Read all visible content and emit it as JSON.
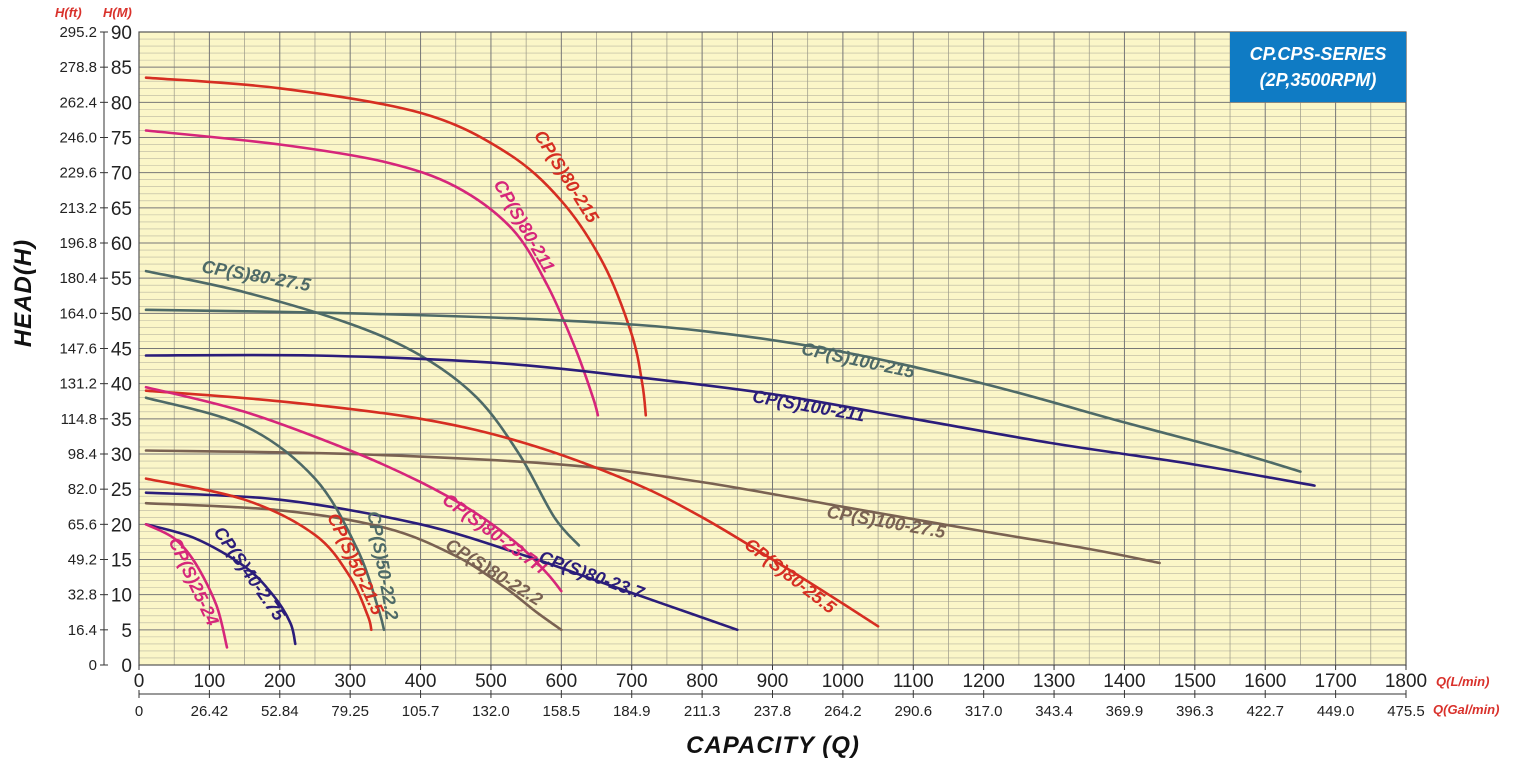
{
  "chart_data": {
    "type": "line",
    "title": "CP.CPS-SERIES",
    "subtitle": "(2P,3500RPM)",
    "xlabel": "CAPACITY (Q)",
    "ylabel": "HEAD(H)",
    "x_unit_primary": "Q(L/min)",
    "x_unit_secondary": "Q(Gal/min)",
    "y_unit_primary": "H(M)",
    "y_unit_secondary": "H(ft)",
    "xlim": [
      0,
      1800
    ],
    "ylim": [
      0,
      90
    ],
    "x_ticks": [
      "0",
      "100",
      "200",
      "300",
      "400",
      "500",
      "600",
      "700",
      "800",
      "900",
      "1000",
      "1100",
      "1200",
      "1300",
      "1400",
      "1500",
      "1600",
      "1700",
      "1800"
    ],
    "x_ticks_secondary": [
      "0",
      "26.42",
      "52.84",
      "79.25",
      "105.7",
      "132.0",
      "158.5",
      "184.9",
      "211.3",
      "237.8",
      "264.2",
      "290.6",
      "317.0",
      "343.4",
      "369.9",
      "396.3",
      "422.7",
      "449.0",
      "475.5"
    ],
    "y_ticks": [
      "0",
      "5",
      "10",
      "15",
      "20",
      "25",
      "30",
      "35",
      "40",
      "45",
      "50",
      "55",
      "60",
      "65",
      "70",
      "75",
      "80",
      "85",
      "90"
    ],
    "y_ticks_secondary": [
      "0",
      "16.4",
      "32.8",
      "49.2",
      "65.6",
      "82.0",
      "98.4",
      "114.8",
      "131.2",
      "147.6",
      "164.0",
      "180.4",
      "196.8",
      "213.2",
      "229.6",
      "246.0",
      "262.4",
      "278.8",
      "295.2"
    ],
    "grid": true,
    "background": "#fbf6c8",
    "badge_color": "#0f7bc4",
    "series": [
      {
        "name": "CP(S)80-215",
        "color": "#d62e22",
        "x": [
          10,
          200,
          400,
          520,
          600,
          660,
          700,
          715,
          720
        ],
        "y": [
          83.5,
          82,
          78.5,
          73,
          66,
          57,
          47,
          40,
          35.5
        ]
      },
      {
        "name": "CP(S)80-211",
        "color": "#d6267a",
        "x": [
          10,
          200,
          350,
          450,
          530,
          580,
          620,
          645,
          652
        ],
        "y": [
          76,
          74,
          71.5,
          68,
          62,
          54,
          45,
          38,
          35.5
        ]
      },
      {
        "name": "CP(S)80-27.5",
        "color": "#4e6a67",
        "x": [
          10,
          150,
          300,
          400,
          480,
          540,
          590,
          625
        ],
        "y": [
          56,
          53,
          48.5,
          44,
          38,
          30,
          21,
          17
        ]
      },
      {
        "name": "CP(S)100-215",
        "color": "#4e6a67",
        "x": [
          10,
          300,
          600,
          800,
          1000,
          1200,
          1400,
          1550,
          1650
        ],
        "y": [
          50.5,
          50,
          49,
          47.5,
          44.5,
          40,
          34.5,
          30.5,
          27.5
        ]
      },
      {
        "name": "CP(S)100-211",
        "color": "#2b1d7a",
        "x": [
          10,
          250,
          500,
          700,
          900,
          1100,
          1300,
          1500,
          1670
        ],
        "y": [
          44,
          44,
          43,
          41,
          38.5,
          35,
          31.5,
          28.5,
          25.5
        ]
      },
      {
        "name": "CP(S)100-27.5",
        "color": "#7a6252",
        "x": [
          10,
          300,
          600,
          800,
          1000,
          1200,
          1350,
          1450
        ],
        "y": [
          30.5,
          30,
          28.5,
          26,
          22.5,
          19,
          16.5,
          14.5
        ]
      },
      {
        "name": "CP(S)80-25.5",
        "color": "#d62e22",
        "x": [
          10,
          200,
          400,
          550,
          700,
          800,
          900,
          980,
          1050
        ],
        "y": [
          39,
          37.5,
          35,
          31.5,
          26,
          21,
          15,
          10,
          5.5
        ]
      },
      {
        "name": "CP(S)80-23.7H",
        "color": "#d6267a",
        "x": [
          10,
          150,
          300,
          400,
          480,
          540,
          580,
          600
        ],
        "y": [
          39.5,
          36,
          30.5,
          26,
          21.5,
          17,
          13,
          10.5
        ]
      },
      {
        "name": "CP(S)80-23.7",
        "color": "#2b1d7a",
        "x": [
          10,
          200,
          400,
          550,
          650,
          750,
          850
        ],
        "y": [
          24.5,
          23.5,
          20,
          15.5,
          12,
          8.5,
          5
        ]
      },
      {
        "name": "CP(S)80-22.2",
        "color": "#7a6252",
        "x": [
          10,
          200,
          350,
          450,
          520,
          565,
          600
        ],
        "y": [
          23,
          22,
          19.5,
          15.5,
          11,
          7.5,
          5
        ]
      },
      {
        "name": "CP(S)50-22.2",
        "color": "#4e6a67",
        "x": [
          10,
          150,
          250,
          310,
          340,
          348
        ],
        "y": [
          38,
          34,
          26.5,
          16.5,
          8,
          5
        ]
      },
      {
        "name": "CP(S)50-21.5",
        "color": "#d62e22",
        "x": [
          10,
          150,
          250,
          300,
          325,
          330
        ],
        "y": [
          26.5,
          23.5,
          18.5,
          12.5,
          7,
          5
        ]
      },
      {
        "name": "CP(S)40-2.75",
        "color": "#2b1d7a",
        "x": [
          10,
          80,
          150,
          190,
          215,
          222
        ],
        "y": [
          20,
          18,
          14,
          10,
          6,
          3
        ]
      },
      {
        "name": "CP(S)25-24",
        "color": "#d6267a",
        "x": [
          10,
          50,
          80,
          110,
          125
        ],
        "y": [
          20,
          18,
          14.5,
          8.5,
          2.5
        ]
      }
    ],
    "annotations": [
      {
        "text": "CP(S)80-215",
        "x": 600,
        "y": 69,
        "angle": 58,
        "color": "#d62e22"
      },
      {
        "text": "CP(S)80-211",
        "x": 540,
        "y": 62,
        "angle": 60,
        "color": "#d6267a"
      },
      {
        "text": "CP(S)80-27.5",
        "x": 165,
        "y": 54.5,
        "angle": 10,
        "color": "#4e6a67"
      },
      {
        "text": "CP(S)100-215",
        "x": 1020,
        "y": 42.5,
        "angle": 12,
        "color": "#4e6a67"
      },
      {
        "text": "CP(S)100-211",
        "x": 950,
        "y": 36,
        "angle": 10,
        "color": "#2b1d7a"
      },
      {
        "text": "CP(S)100-27.5",
        "x": 1060,
        "y": 19.5,
        "angle": 10,
        "color": "#7a6252"
      },
      {
        "text": "CP(S)80-25.5",
        "x": 920,
        "y": 12,
        "angle": 38,
        "color": "#d62e22"
      },
      {
        "text": "CP(S)80-23.7H",
        "x": 500,
        "y": 18,
        "angle": 36,
        "color": "#d6267a"
      },
      {
        "text": "CP(S)80-23.7",
        "x": 640,
        "y": 12,
        "angle": 20,
        "color": "#2b1d7a"
      },
      {
        "text": "CP(S)80-22.2",
        "x": 500,
        "y": 12.5,
        "angle": 32,
        "color": "#7a6252"
      },
      {
        "text": "CP(S)50-22.2",
        "x": 338,
        "y": 14,
        "angle": 80,
        "color": "#4e6a67"
      },
      {
        "text": "CP(S)50-21.5",
        "x": 300,
        "y": 14,
        "angle": 65,
        "color": "#d62e22"
      },
      {
        "text": "CP(S)40-2.75",
        "x": 150,
        "y": 12.5,
        "angle": 55,
        "color": "#2b1d7a"
      },
      {
        "text": "CP(S)25-24",
        "x": 70,
        "y": 11.5,
        "angle": 65,
        "color": "#d6267a"
      }
    ]
  }
}
